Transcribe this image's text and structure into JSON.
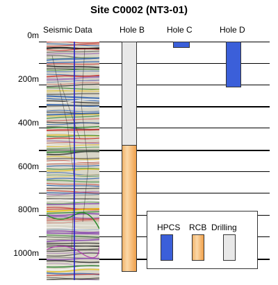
{
  "title": "Site C0002 (NT3-01)",
  "columns": {
    "seismic": "Seismic Data",
    "hole_b": "Hole B",
    "hole_c": "Hole C",
    "hole_d": "Hole D"
  },
  "depth_labels": [
    "0m",
    "200m",
    "400m",
    "600m",
    "800m",
    "1000m"
  ],
  "holes": {
    "hole_b": {
      "segments": [
        {
          "method": "Drilling",
          "from_m": 0,
          "to_m": 475
        },
        {
          "method": "RCB",
          "from_m": 475,
          "to_m": 1055
        }
      ]
    },
    "hole_c": {
      "segments": [
        {
          "method": "HPCS",
          "from_m": 0,
          "to_m": 30
        }
      ]
    },
    "hole_d": {
      "segments": [
        {
          "method": "HPCS",
          "from_m": 0,
          "to_m": 210
        }
      ]
    }
  },
  "legend": {
    "items": [
      {
        "label": "HPCS",
        "color": "#3b5fd9"
      },
      {
        "label": "RCB",
        "color": "#f59a3c"
      },
      {
        "label": "Drilling",
        "color": "#e8e8e8"
      }
    ]
  },
  "colors": {
    "hpcs": "#3b5fd9",
    "rcb": "#f59a3c",
    "drilling": "#e8e8e8",
    "seismic_line": "#1f1fcc"
  }
}
